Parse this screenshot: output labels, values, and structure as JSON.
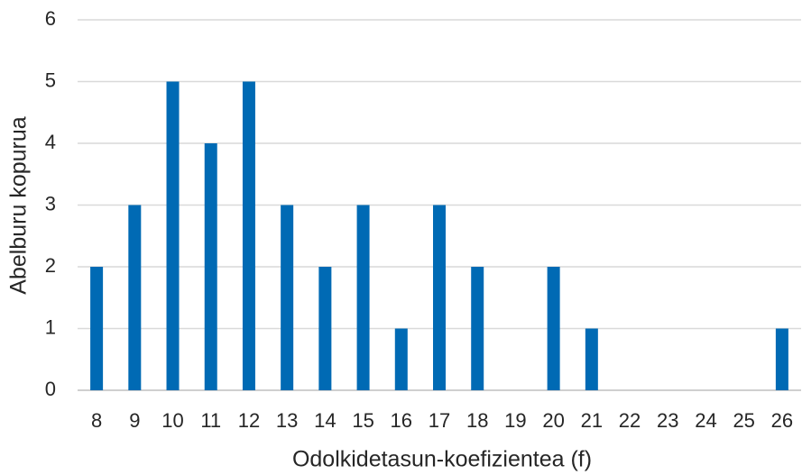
{
  "chart_data": {
    "type": "bar",
    "x_label": "Odolkidetasun-koefizientea (f)",
    "y_label": "Abelburu kopurua",
    "categories": [
      "8",
      "9",
      "10",
      "11",
      "12",
      "13",
      "14",
      "15",
      "16",
      "17",
      "18",
      "19",
      "20",
      "21",
      "22",
      "23",
      "24",
      "25",
      "26"
    ],
    "values": [
      2,
      3,
      5,
      4,
      5,
      3,
      2,
      3,
      1,
      3,
      2,
      0,
      2,
      1,
      0,
      0,
      0,
      0,
      1
    ],
    "color": "#006ab4",
    "ylim": [
      0,
      6
    ],
    "yticks": [
      0,
      1,
      2,
      3,
      4,
      5,
      6
    ],
    "grid": true
  }
}
